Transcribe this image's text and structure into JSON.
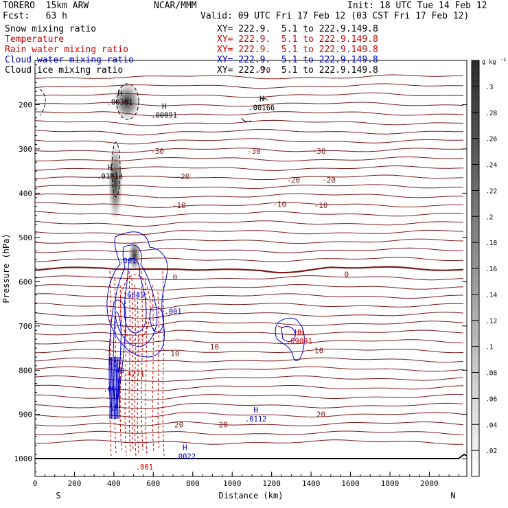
{
  "header": {
    "model": "TORERO  15km ARW",
    "fcst": "Fcst:   63 h",
    "center": "NCAR/MMM",
    "init": "Init: 18 UTC Tue 14 Feb 12",
    "valid": "Valid: 09 UTC Fri 17 Feb 12 (03 CST Fri 17 Feb 12)"
  },
  "fields": [
    {
      "name": "Snow mixing ratio",
      "xy": "XY= 222.9.  5.1 to 222.9.149.8",
      "color": "#000000"
    },
    {
      "name": "Temperature",
      "xy": "XY= 222.9.  5.1 to 222.9.149.8",
      "color": "#cc0000"
    },
    {
      "name": "Rain water mixing ratio",
      "xy": "XY= 222.9.  5.1 to 222.9.149.8",
      "color": "#cc0000"
    },
    {
      "name": "Cloud water mixing ratio",
      "xy": "XY= 222.9.  5.1 to 222.9.149.8",
      "color": "#0000cc"
    },
    {
      "name": "Cloud ice mixing ratio",
      "xy": "XY= 222.9.  5.1 to 222.9.149.8",
      "color": "#000000"
    }
  ],
  "colors": {
    "temperature": "#7a1a1a",
    "rain": "#cc0000",
    "cloud_water": "#0000cc",
    "snow_shade": "#333333",
    "frame": "#000000"
  },
  "chart_data": {
    "type": "cross-section contour",
    "xlabel": "Distance (km)",
    "ylabel": "Pressure (hPa)",
    "x_ticks": [
      0,
      200,
      400,
      600,
      800,
      1000,
      1200,
      1400,
      1600,
      1800,
      2000
    ],
    "xlim": [
      0,
      2190
    ],
    "y_ticks": [
      200,
      300,
      400,
      500,
      600,
      700,
      800,
      900,
      1000
    ],
    "ylim": [
      100,
      1040
    ],
    "x_ends": {
      "left": "S",
      "right": "N"
    },
    "colorbar": {
      "unit": "g kg",
      "unit_exp": "-1",
      "ticks": [
        ".02",
        ".04",
        ".06",
        ".08",
        ".1",
        ".12",
        ".14",
        ".16",
        ".18",
        ".2",
        ".22",
        ".24",
        ".26",
        ".28",
        ".3"
      ],
      "range": [
        0,
        0.32
      ]
    },
    "temperature_labels": [
      {
        "text": "-70",
        "x": 1160,
        "p": 122
      },
      {
        "text": "-30",
        "x": 620,
        "p": 305
      },
      {
        "text": "-30",
        "x": 1110,
        "p": 305
      },
      {
        "text": "-30",
        "x": 1440,
        "p": 305
      },
      {
        "text": "-20",
        "x": 750,
        "p": 362
      },
      {
        "text": "-20",
        "x": 1310,
        "p": 370
      },
      {
        "text": "-20",
        "x": 1490,
        "p": 370
      },
      {
        "text": "-10",
        "x": 730,
        "p": 427
      },
      {
        "text": "-10",
        "x": 1240,
        "p": 425
      },
      {
        "text": "-10",
        "x": 1450,
        "p": 427
      },
      {
        "text": "0",
        "x": 710,
        "p": 590
      },
      {
        "text": "0",
        "x": 1580,
        "p": 583
      },
      {
        "text": "10",
        "x": 710,
        "p": 762
      },
      {
        "text": "10",
        "x": 910,
        "p": 747
      },
      {
        "text": "10",
        "x": 1440,
        "p": 755
      },
      {
        "text": "20",
        "x": 730,
        "p": 923
      },
      {
        "text": "20",
        "x": 955,
        "p": 923
      },
      {
        "text": "20",
        "x": 1450,
        "p": 900
      }
    ],
    "maxima_labels": [
      {
        "text": "H",
        "value": ".00361",
        "x": 430,
        "p": 192,
        "color": "#000000"
      },
      {
        "text": "H",
        "value": ".00091",
        "x": 655,
        "p": 222,
        "color": "#000000"
      },
      {
        "text": "H",
        "value": ".00166",
        "x": 1150,
        "p": 205,
        "color": "#000000"
      },
      {
        "text": "H",
        "value": ".01013",
        "x": 380,
        "p": 360,
        "color": "#000000"
      },
      {
        "text": "H",
        "value": ".0112",
        "x": 1120,
        "p": 908,
        "color": "#0000cc"
      },
      {
        "text": "H",
        "value": ".0022",
        "x": 760,
        "p": 993,
        "color": "#0000cc"
      },
      {
        "text": "HH",
        "value": ".09091",
        "x": 1340,
        "p": 732,
        "color": "#cc0000"
      }
    ],
    "other_labels": [
      {
        "text": ".001",
        "x": 470,
        "p": 552,
        "color": "#0000cc"
      },
      {
        "text": ".6845",
        "x": 500,
        "p": 630,
        "color": "#0000cc"
      },
      {
        "text": ".001",
        "x": 700,
        "p": 667,
        "color": "#0000cc"
      },
      {
        "text": ".40",
        "x": 420,
        "p": 800,
        "color": "#0000cc"
      },
      {
        "text": ".4771",
        "x": 500,
        "p": 808,
        "color": "#cc0000"
      },
      {
        "text": ".001",
        "x": 390,
        "p": 842,
        "color": "#0000cc"
      },
      {
        "text": ".001",
        "x": 555,
        "p": 1018,
        "color": "#cc0000"
      }
    ]
  }
}
